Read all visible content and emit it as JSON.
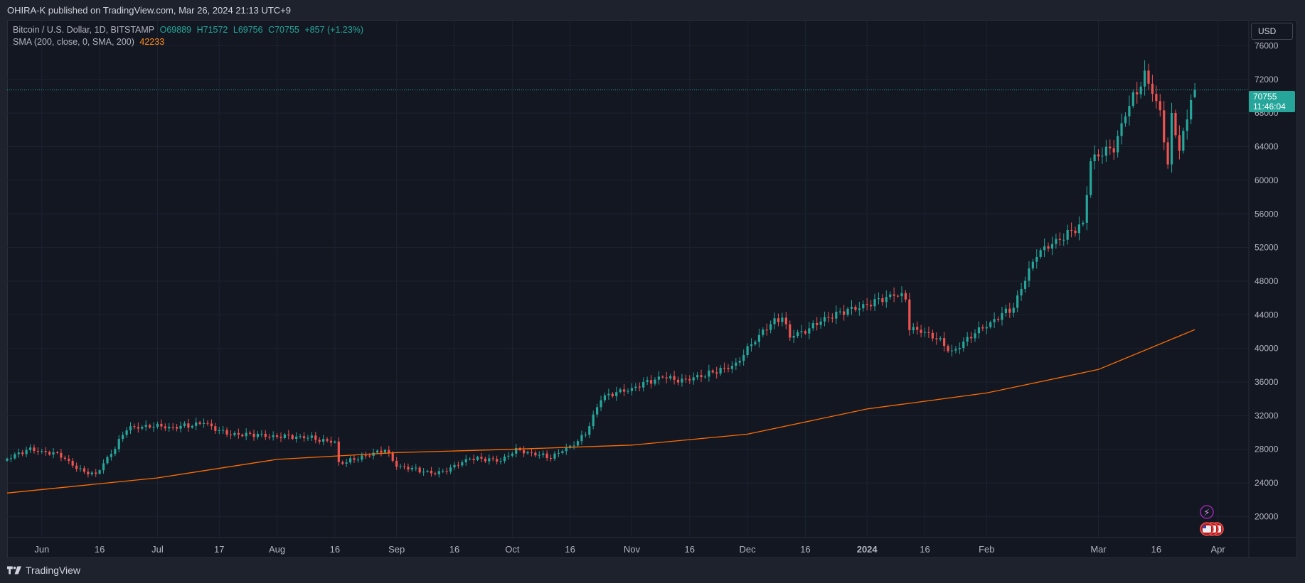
{
  "header": {
    "published_text": "OHIRA-K published on TradingView.com, Mar 26, 2024 21:13 UTC+9"
  },
  "legend": {
    "symbol": "Bitcoin / U.S. Dollar, 1D, BITSTAMP",
    "open": "O69889",
    "high": "H71572",
    "low": "L69756",
    "close": "C70755",
    "change": "+857 (+1.23%)",
    "sma_label": "SMA (200, close, 0, SMA, 200)",
    "sma_value": "42233"
  },
  "price_axis": {
    "currency": "USD",
    "last_price": "70755",
    "countdown": "11:46:04"
  },
  "footer": {
    "brand": "TradingView"
  },
  "colors": {
    "up": "#26a69a",
    "down": "#ef5350",
    "sma": "#ff6d00",
    "background": "#131722"
  },
  "chart_data": {
    "type": "candlestick",
    "title": "Bitcoin / U.S. Dollar, 1D, BITSTAMP",
    "ylim": [
      17500,
      79000
    ],
    "y_ticks": [
      20000,
      24000,
      28000,
      32000,
      36000,
      40000,
      44000,
      48000,
      52000,
      56000,
      60000,
      64000,
      68000,
      72000,
      76000
    ],
    "x_range": [
      "2023-05-23",
      "2024-04-09"
    ],
    "x_ticks": [
      {
        "date": "2023-06-01",
        "label": "Jun"
      },
      {
        "date": "2023-06-16",
        "label": "16"
      },
      {
        "date": "2023-07-01",
        "label": "Jul"
      },
      {
        "date": "2023-07-17",
        "label": "17"
      },
      {
        "date": "2023-08-01",
        "label": "Aug"
      },
      {
        "date": "2023-08-16",
        "label": "16"
      },
      {
        "date": "2023-09-01",
        "label": "Sep"
      },
      {
        "date": "2023-09-16",
        "label": "16"
      },
      {
        "date": "2023-10-01",
        "label": "Oct"
      },
      {
        "date": "2023-10-16",
        "label": "16"
      },
      {
        "date": "2023-11-01",
        "label": "Nov"
      },
      {
        "date": "2023-11-16",
        "label": "16"
      },
      {
        "date": "2023-12-01",
        "label": "Dec"
      },
      {
        "date": "2023-12-16",
        "label": "16"
      },
      {
        "date": "2024-01-01",
        "label": "2024"
      },
      {
        "date": "2024-01-16",
        "label": "16"
      },
      {
        "date": "2024-02-01",
        "label": "Feb"
      },
      {
        "date": "2024-03-01",
        "label": "Mar"
      },
      {
        "date": "2024-03-16",
        "label": "16"
      },
      {
        "date": "2024-04-01",
        "label": "Apr"
      }
    ],
    "close_series": [
      {
        "date": "2023-05-23",
        "close": 26900
      },
      {
        "date": "2023-05-29",
        "close": 27800
      },
      {
        "date": "2023-06-06",
        "close": 27200
      },
      {
        "date": "2023-06-10",
        "close": 25800
      },
      {
        "date": "2023-06-15",
        "close": 25200
      },
      {
        "date": "2023-06-20",
        "close": 28300
      },
      {
        "date": "2023-06-23",
        "close": 30500
      },
      {
        "date": "2023-07-05",
        "close": 30500
      },
      {
        "date": "2023-07-13",
        "close": 31300
      },
      {
        "date": "2023-07-20",
        "close": 29900
      },
      {
        "date": "2023-08-01",
        "close": 29300
      },
      {
        "date": "2023-08-10",
        "close": 29500
      },
      {
        "date": "2023-08-16",
        "close": 29000
      },
      {
        "date": "2023-08-17",
        "close": 26500
      },
      {
        "date": "2023-08-29",
        "close": 27700
      },
      {
        "date": "2023-09-01",
        "close": 25900
      },
      {
        "date": "2023-09-11",
        "close": 25200
      },
      {
        "date": "2023-09-20",
        "close": 27000
      },
      {
        "date": "2023-09-28",
        "close": 26500
      },
      {
        "date": "2023-10-02",
        "close": 27700
      },
      {
        "date": "2023-10-11",
        "close": 27200
      },
      {
        "date": "2023-10-16",
        "close": 28500
      },
      {
        "date": "2023-10-20",
        "close": 30000
      },
      {
        "date": "2023-10-24",
        "close": 34000
      },
      {
        "date": "2023-11-01",
        "close": 35000
      },
      {
        "date": "2023-11-09",
        "close": 36700
      },
      {
        "date": "2023-11-15",
        "close": 36500
      },
      {
        "date": "2023-11-28",
        "close": 37800
      },
      {
        "date": "2023-12-05",
        "close": 42000
      },
      {
        "date": "2023-12-10",
        "close": 44000
      },
      {
        "date": "2023-12-12",
        "close": 41500
      },
      {
        "date": "2023-12-20",
        "close": 43500
      },
      {
        "date": "2024-01-02",
        "close": 45000
      },
      {
        "date": "2024-01-08",
        "close": 46500
      },
      {
        "date": "2024-01-11",
        "close": 46300
      },
      {
        "date": "2024-01-12",
        "close": 42800
      },
      {
        "date": "2024-01-19",
        "close": 41500
      },
      {
        "date": "2024-01-23",
        "close": 39500
      },
      {
        "date": "2024-02-01",
        "close": 42500
      },
      {
        "date": "2024-02-08",
        "close": 45000
      },
      {
        "date": "2024-02-14",
        "close": 51800
      },
      {
        "date": "2024-02-26",
        "close": 54500
      },
      {
        "date": "2024-02-28",
        "close": 62000
      },
      {
        "date": "2024-03-05",
        "close": 63500
      },
      {
        "date": "2024-03-08",
        "close": 68000
      },
      {
        "date": "2024-03-13",
        "close": 73000
      },
      {
        "date": "2024-03-17",
        "close": 68500
      },
      {
        "date": "2024-03-19",
        "close": 62500
      },
      {
        "date": "2024-03-20",
        "close": 67800
      },
      {
        "date": "2024-03-22",
        "close": 64000
      },
      {
        "date": "2024-03-24",
        "close": 67200
      },
      {
        "date": "2024-03-25",
        "close": 69889
      },
      {
        "date": "2024-03-26",
        "close": 70755
      }
    ],
    "sma_200": [
      {
        "date": "2023-05-23",
        "value": 22800
      },
      {
        "date": "2023-07-01",
        "value": 24600
      },
      {
        "date": "2023-08-01",
        "value": 26800
      },
      {
        "date": "2023-09-01",
        "value": 27600
      },
      {
        "date": "2023-10-01",
        "value": 28000
      },
      {
        "date": "2023-11-01",
        "value": 28500
      },
      {
        "date": "2023-12-01",
        "value": 29800
      },
      {
        "date": "2024-01-01",
        "value": 32800
      },
      {
        "date": "2024-02-01",
        "value": 34700
      },
      {
        "date": "2024-03-01",
        "value": 37500
      },
      {
        "date": "2024-03-26",
        "value": 42233
      }
    ],
    "last_candle": {
      "date": "2024-03-26",
      "open": 69889,
      "high": 71572,
      "low": 69756,
      "close": 70755
    }
  }
}
